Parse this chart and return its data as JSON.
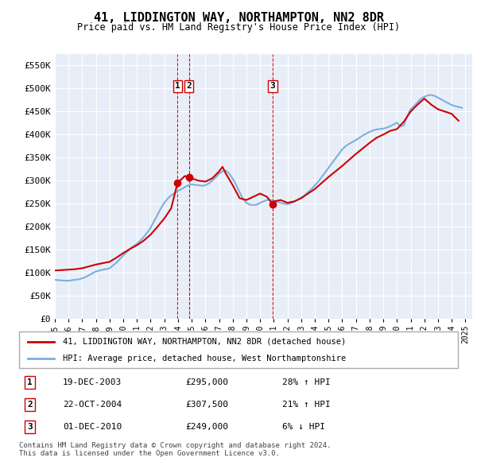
{
  "title": "41, LIDDINGTON WAY, NORTHAMPTON, NN2 8DR",
  "subtitle": "Price paid vs. HM Land Registry's House Price Index (HPI)",
  "ylim": [
    0,
    575000
  ],
  "ytick_vals": [
    0,
    50000,
    100000,
    150000,
    200000,
    250000,
    300000,
    350000,
    400000,
    450000,
    500000,
    550000
  ],
  "xlim_start": 1995.0,
  "xlim_end": 2025.5,
  "plot_bg": "#e8eef8",
  "grid_color": "#ffffff",
  "hpi_line_color": "#7ab0e0",
  "price_line_color": "#cc0000",
  "sale_marker_color": "#cc0000",
  "vline_color": "#dd0000",
  "transactions": [
    {
      "id": 1,
      "date": "19-DEC-2003",
      "year": 2003.96,
      "price": 295000,
      "hpi_pct": "28% ↑ HPI"
    },
    {
      "id": 2,
      "date": "22-OCT-2004",
      "year": 2004.81,
      "price": 307500,
      "hpi_pct": "21% ↑ HPI"
    },
    {
      "id": 3,
      "date": "01-DEC-2010",
      "year": 2010.92,
      "price": 249000,
      "hpi_pct": "6% ↓ HPI"
    }
  ],
  "legend_line1": "41, LIDDINGTON WAY, NORTHAMPTON, NN2 8DR (detached house)",
  "legend_line2": "HPI: Average price, detached house, West Northamptonshire",
  "footer1": "Contains HM Land Registry data © Crown copyright and database right 2024.",
  "footer2": "This data is licensed under the Open Government Licence v3.0.",
  "hpi_data": {
    "years": [
      1995.0,
      1995.25,
      1995.5,
      1995.75,
      1996.0,
      1996.25,
      1996.5,
      1996.75,
      1997.0,
      1997.25,
      1997.5,
      1997.75,
      1998.0,
      1998.25,
      1998.5,
      1998.75,
      1999.0,
      1999.25,
      1999.5,
      1999.75,
      2000.0,
      2000.25,
      2000.5,
      2000.75,
      2001.0,
      2001.25,
      2001.5,
      2001.75,
      2002.0,
      2002.25,
      2002.5,
      2002.75,
      2003.0,
      2003.25,
      2003.5,
      2003.75,
      2004.0,
      2004.25,
      2004.5,
      2004.75,
      2005.0,
      2005.25,
      2005.5,
      2005.75,
      2006.0,
      2006.25,
      2006.5,
      2006.75,
      2007.0,
      2007.25,
      2007.5,
      2007.75,
      2008.0,
      2008.25,
      2008.5,
      2008.75,
      2009.0,
      2009.25,
      2009.5,
      2009.75,
      2010.0,
      2010.25,
      2010.5,
      2010.75,
      2011.0,
      2011.25,
      2011.5,
      2011.75,
      2012.0,
      2012.25,
      2012.5,
      2012.75,
      2013.0,
      2013.25,
      2013.5,
      2013.75,
      2014.0,
      2014.25,
      2014.5,
      2014.75,
      2015.0,
      2015.25,
      2015.5,
      2015.75,
      2016.0,
      2016.25,
      2016.5,
      2016.75,
      2017.0,
      2017.25,
      2017.5,
      2017.75,
      2018.0,
      2018.25,
      2018.5,
      2018.75,
      2019.0,
      2019.25,
      2019.5,
      2019.75,
      2020.0,
      2020.25,
      2020.5,
      2020.75,
      2021.0,
      2021.25,
      2021.5,
      2021.75,
      2022.0,
      2022.25,
      2022.5,
      2022.75,
      2023.0,
      2023.25,
      2023.5,
      2023.75,
      2024.0,
      2024.25,
      2024.5,
      2024.75
    ],
    "values": [
      85000,
      84000,
      83500,
      83000,
      83000,
      84000,
      85000,
      86000,
      88000,
      91000,
      95000,
      99000,
      103000,
      105000,
      107000,
      108000,
      110000,
      116000,
      122000,
      130000,
      138000,
      145000,
      152000,
      158000,
      163000,
      170000,
      178000,
      187000,
      198000,
      212000,
      226000,
      240000,
      252000,
      261000,
      268000,
      273000,
      278000,
      282000,
      286000,
      290000,
      292000,
      291000,
      290000,
      289000,
      290000,
      294000,
      300000,
      307000,
      315000,
      320000,
      322000,
      315000,
      304000,
      291000,
      275000,
      260000,
      252000,
      248000,
      247000,
      248000,
      252000,
      255000,
      258000,
      258000,
      256000,
      254000,
      252000,
      250000,
      249000,
      251000,
      255000,
      259000,
      263000,
      268000,
      275000,
      282000,
      290000,
      298000,
      308000,
      318000,
      328000,
      338000,
      348000,
      358000,
      368000,
      375000,
      380000,
      384000,
      388000,
      393000,
      398000,
      402000,
      406000,
      409000,
      411000,
      412000,
      413000,
      415000,
      418000,
      422000,
      426000,
      418000,
      420000,
      440000,
      455000,
      462000,
      470000,
      478000,
      482000,
      485000,
      486000,
      484000,
      480000,
      476000,
      472000,
      468000,
      464000,
      462000,
      460000,
      458000
    ]
  },
  "price_data": {
    "years": [
      1995.0,
      1995.5,
      1996.0,
      1996.5,
      1997.0,
      1997.5,
      1998.0,
      1998.5,
      1999.0,
      1999.5,
      2000.0,
      2000.5,
      2001.0,
      2001.5,
      2002.0,
      2002.5,
      2003.0,
      2003.5,
      2003.96,
      2004.5,
      2004.81,
      2005.0,
      2005.5,
      2006.0,
      2006.5,
      2007.0,
      2007.25,
      2007.5,
      2008.0,
      2008.5,
      2009.0,
      2009.5,
      2010.0,
      2010.5,
      2010.92,
      2011.0,
      2011.5,
      2012.0,
      2012.5,
      2013.0,
      2013.5,
      2014.0,
      2014.5,
      2015.0,
      2015.5,
      2016.0,
      2016.5,
      2017.0,
      2017.5,
      2018.0,
      2018.5,
      2019.0,
      2019.5,
      2020.0,
      2020.5,
      2021.0,
      2021.5,
      2022.0,
      2022.5,
      2023.0,
      2023.5,
      2024.0,
      2024.5
    ],
    "values": [
      105000,
      106000,
      107000,
      108000,
      110000,
      114000,
      118000,
      121000,
      124000,
      133000,
      143000,
      152000,
      160000,
      170000,
      183000,
      200000,
      218000,
      240000,
      295000,
      310000,
      307500,
      305000,
      300000,
      298000,
      305000,
      320000,
      330000,
      315000,
      290000,
      262000,
      258000,
      265000,
      272000,
      265000,
      249000,
      255000,
      258000,
      252000,
      255000,
      262000,
      272000,
      282000,
      295000,
      308000,
      320000,
      332000,
      345000,
      358000,
      370000,
      382000,
      393000,
      400000,
      408000,
      412000,
      428000,
      450000,
      465000,
      478000,
      465000,
      455000,
      450000,
      445000,
      430000
    ]
  }
}
